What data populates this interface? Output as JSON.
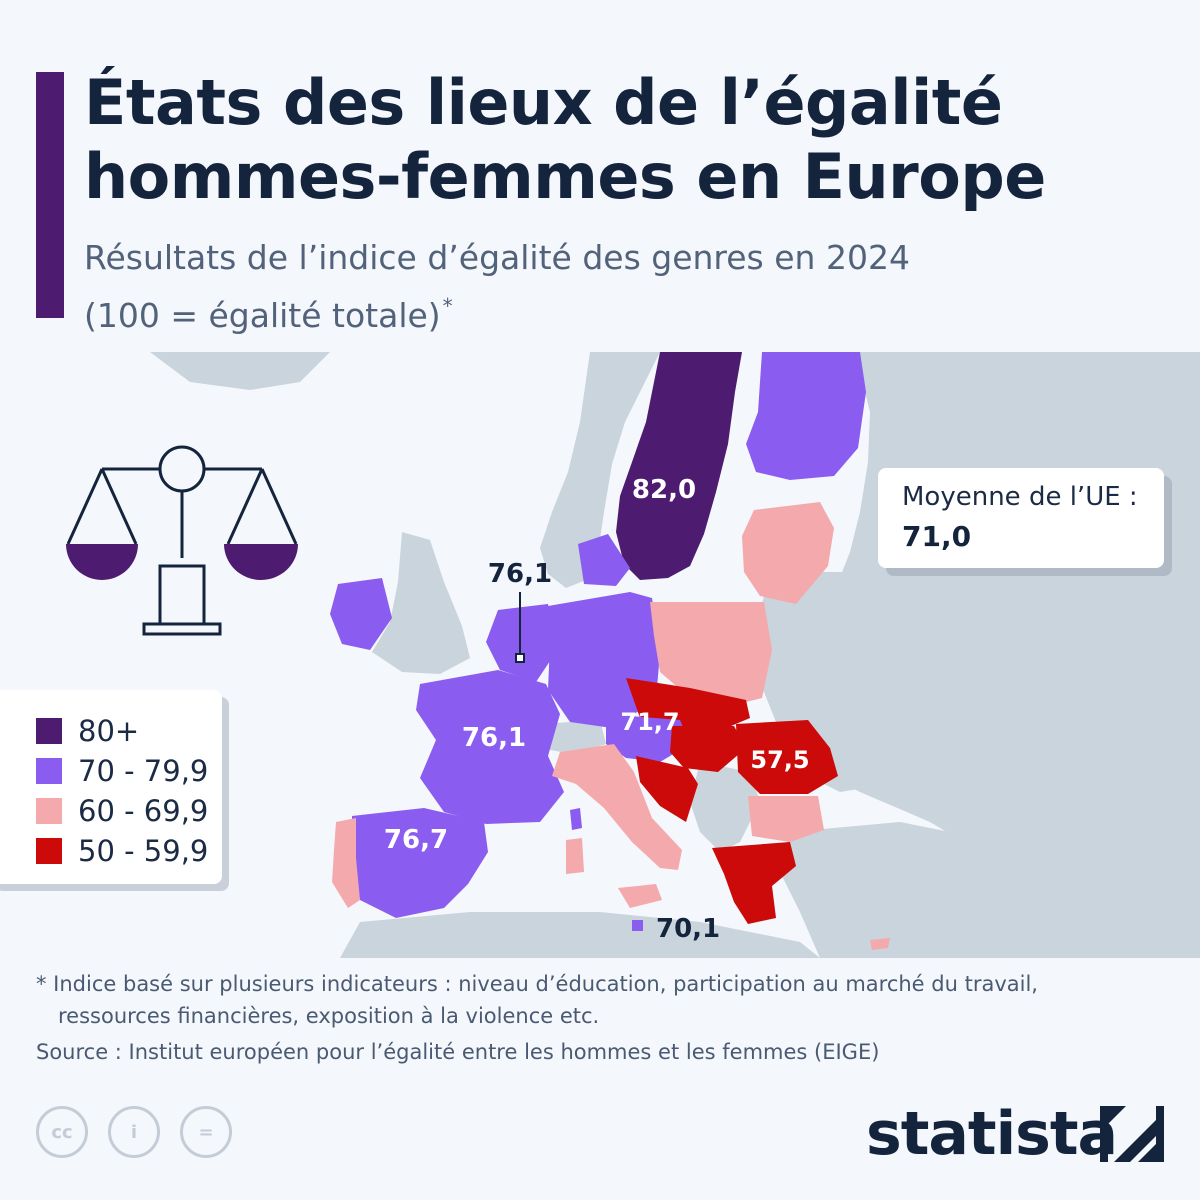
{
  "title": {
    "line1": "États des lieux de l’égalité",
    "line2": "hommes-femmes en Europe"
  },
  "subtitle": {
    "line1": "Résultats de l’indice d’égalité des genres en 2024",
    "line2": "(100 = égalité totale)",
    "marker": "*"
  },
  "colors": {
    "tier_80_plus": "#4d1b70",
    "tier_70_79": "#8b5cf0",
    "tier_60_69": "#f4a9ac",
    "tier_50_59": "#cc0a0a",
    "non_eu": "#c9d4dd",
    "sea": "#f4f7fb",
    "text": "#15243d"
  },
  "legend": {
    "items": [
      {
        "label": "80+",
        "color": "#4d1b70"
      },
      {
        "label": "70 - 79,9",
        "color": "#8b5cf0"
      },
      {
        "label": "60 - 69,9",
        "color": "#f4a9ac"
      },
      {
        "label": "50 - 59,9",
        "color": "#cc0a0a"
      }
    ]
  },
  "average": {
    "label": "Moyenne de l’UE :",
    "value": "71,0"
  },
  "map_labels": {
    "sweden": "82,0",
    "benelux": "76,1",
    "france": "76,1",
    "austria": "71,7",
    "romania": "57,5",
    "spain": "76,7",
    "malta": "70,1"
  },
  "footnote": {
    "line1": "* Indice basé sur plusieurs indicateurs : niveau d’éducation, participation au marché du travail,",
    "line2": "ressources financières, exposition à la violence etc."
  },
  "source": "Source : Institut européen pour l’égalité entre les hommes et les femmes (EIGE)",
  "license_icons": [
    "cc-icon",
    "attribution-icon",
    "no-derivatives-icon"
  ],
  "license_texts": [
    "cc",
    "i",
    "="
  ],
  "brand": "statista"
}
